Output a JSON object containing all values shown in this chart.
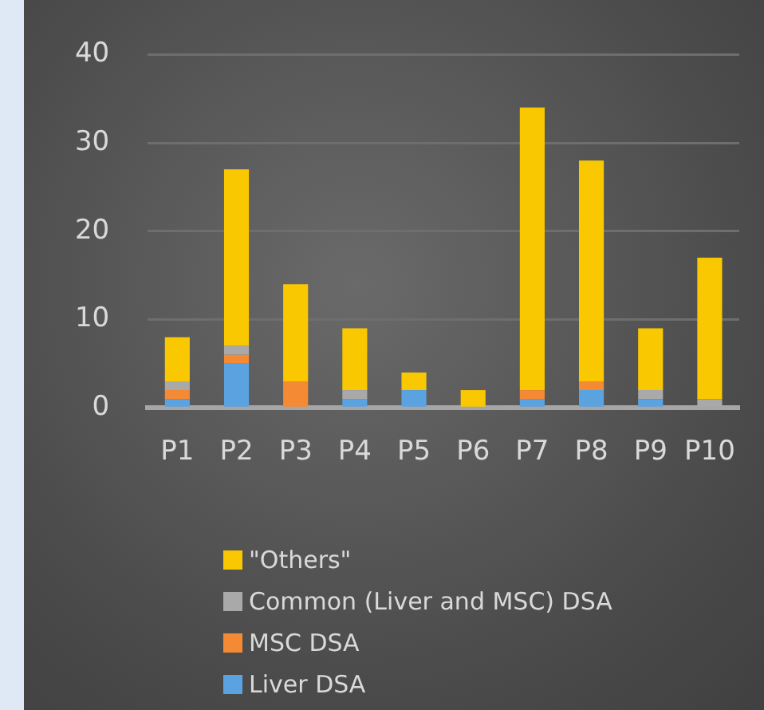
{
  "chart_data": {
    "type": "bar",
    "stacked": true,
    "categories": [
      "P1",
      "P2",
      "P3",
      "P4",
      "P5",
      "P6",
      "P7",
      "P8",
      "P9",
      "P10"
    ],
    "series": [
      {
        "name": "Liver DSA",
        "color": "#5ba3e0",
        "values": [
          1,
          5,
          0,
          1,
          2,
          0,
          1,
          2,
          1,
          0
        ]
      },
      {
        "name": "MSC DSA",
        "color": "#f58a35",
        "values": [
          1,
          1,
          3,
          0,
          0,
          0,
          1,
          1,
          0,
          0
        ]
      },
      {
        "name": "Common (Liver and MSC) DSA",
        "color": "#a9a9a9",
        "values": [
          1,
          1,
          0,
          1,
          0,
          0,
          0,
          0,
          1,
          1
        ]
      },
      {
        "name": "\"Others\"",
        "color": "#f9c800",
        "values": [
          5,
          20,
          11,
          7,
          2,
          2,
          32,
          25,
          7,
          16
        ]
      }
    ],
    "ylim": [
      0,
      40
    ],
    "yticks": [
      0,
      10,
      20,
      30,
      40
    ],
    "grid": "y",
    "legend": "bottom"
  }
}
